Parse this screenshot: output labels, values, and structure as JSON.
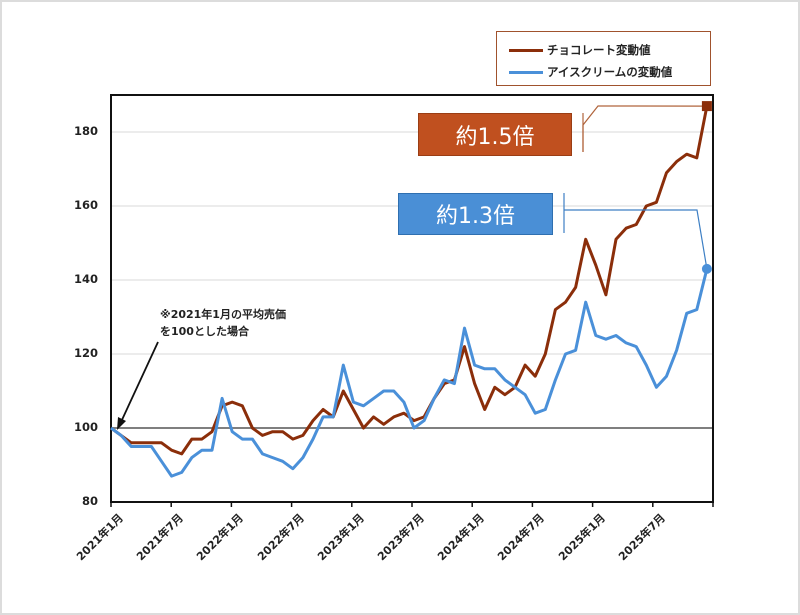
{
  "chart_data": {
    "type": "line",
    "title": "",
    "xlabel": "",
    "ylabel": "",
    "ylim": [
      80,
      190
    ],
    "yticks": [
      80,
      100,
      120,
      140,
      160,
      180
    ],
    "grid": true,
    "baseline": 100,
    "legend_position": "top-right",
    "xtick_labels": [
      "2021年1月",
      "2021年7月",
      "2022年1月",
      "2022年7月",
      "2023年1月",
      "2023年7月",
      "2024年1月",
      "2024年7月",
      "2025年1月",
      "2025年7月"
    ],
    "x_start": "2021年1月",
    "x_end": "2025年12月",
    "series": [
      {
        "name": "チョコレート変動値",
        "color": "#8b2e0a",
        "values": [
          100,
          98,
          96,
          96,
          96,
          96,
          94,
          93,
          97,
          97,
          99,
          106,
          107,
          106,
          100,
          98,
          99,
          99,
          97,
          98,
          102,
          105,
          103,
          110,
          105,
          100,
          103,
          101,
          103,
          104,
          102,
          103,
          108,
          112,
          113,
          122,
          112,
          105,
          111,
          109,
          111,
          117,
          114,
          120,
          132,
          134,
          138,
          151,
          144,
          136,
          151,
          154,
          155,
          160,
          161,
          169,
          172,
          174,
          173,
          187
        ]
      },
      {
        "name": "アイスクリームの変動値",
        "color": "#4a90d9",
        "values": [
          100,
          98,
          95,
          95,
          95,
          91,
          87,
          88,
          92,
          94,
          94,
          108,
          99,
          97,
          97,
          93,
          92,
          91,
          89,
          92,
          97,
          103,
          103,
          117,
          107,
          106,
          108,
          110,
          110,
          107,
          100,
          102,
          108,
          113,
          112,
          127,
          117,
          116,
          116,
          113,
          111,
          109,
          104,
          105,
          113,
          120,
          121,
          134,
          125,
          124,
          125,
          123,
          122,
          117,
          111,
          114,
          121,
          131,
          132,
          143
        ]
      }
    ],
    "annotations": [
      {
        "text": "約1.5倍",
        "series": "チョコレート変動値",
        "color": "#c0501f"
      },
      {
        "text": "約1.3倍",
        "series": "アイスクリームの変動値",
        "color": "#4a8fd6"
      },
      {
        "text": "※2021年1月の平均売価を100とした場合",
        "lines": [
          "※2021年1月の平均売価",
          "を100とした場合"
        ]
      }
    ]
  },
  "legend": {
    "items": [
      {
        "label": "チョコレート変動値",
        "color": "#8b2e0a"
      },
      {
        "label": "アイスクリームの変動値",
        "color": "#4a90d9"
      }
    ]
  },
  "callouts": {
    "chocolate": "約1.5倍",
    "icecream": "約1.3倍"
  },
  "note": {
    "line1": "※2021年1月の平均売価",
    "line2": "を100とした場合"
  },
  "axis": {
    "y": [
      "80",
      "100",
      "120",
      "140",
      "160",
      "180"
    ],
    "x": [
      "2021年1月",
      "2021年7月",
      "2022年1月",
      "2022年7月",
      "2023年1月",
      "2023年7月",
      "2024年1月",
      "2024年7月",
      "2025年1月",
      "2025年7月"
    ]
  }
}
